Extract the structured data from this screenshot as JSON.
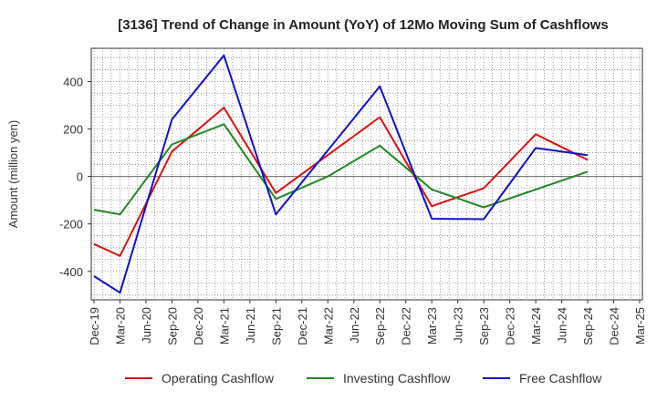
{
  "chart_data": {
    "type": "line",
    "title": "[3136]  Trend of Change in Amount (YoY) of 12Mo Moving Sum of Cashflows",
    "xlabel": "",
    "ylabel": "Amount (million yen)",
    "categories": [
      "Dec-19",
      "Mar-20",
      "Jun-20",
      "Sep-20",
      "Dec-20",
      "Mar-21",
      "Jun-21",
      "Sep-21",
      "Dec-21",
      "Mar-22",
      "Jun-22",
      "Sep-22",
      "Dec-22",
      "Mar-23",
      "Jun-23",
      "Sep-23",
      "Dec-23",
      "Mar-24",
      "Jun-24",
      "Sep-24",
      "Dec-24",
      "Mar-25"
    ],
    "ylim": [
      -520,
      540
    ],
    "yticks": [
      -400,
      -200,
      0,
      200,
      400
    ],
    "grid": true,
    "legend_position": "bottom",
    "series": [
      {
        "name": "Operating Cashflow",
        "color": "#dd1111",
        "values": [
          -285,
          -335,
          null,
          105,
          null,
          290,
          null,
          -70,
          null,
          null,
          null,
          250,
          null,
          -125,
          null,
          -50,
          null,
          178,
          null,
          70,
          null,
          null
        ]
      },
      {
        "name": "Investing Cashflow",
        "color": "#228822",
        "values": [
          -140,
          -160,
          null,
          135,
          null,
          220,
          null,
          -95,
          null,
          0,
          null,
          130,
          null,
          -55,
          null,
          -130,
          null,
          -55,
          null,
          20,
          null,
          null
        ]
      },
      {
        "name": "Free Cashflow",
        "color": "#1111cc",
        "values": [
          -420,
          -490,
          null,
          240,
          null,
          510,
          null,
          -160,
          null,
          null,
          null,
          380,
          null,
          -178,
          null,
          -180,
          null,
          120,
          null,
          90,
          null,
          null
        ]
      }
    ]
  }
}
